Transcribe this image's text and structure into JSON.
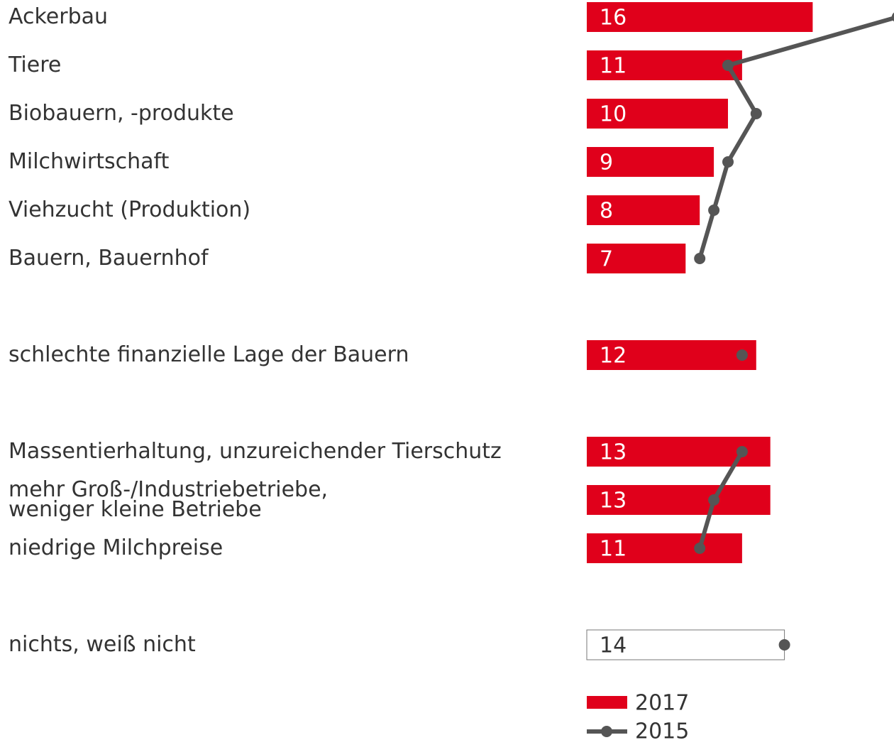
{
  "chart_data": {
    "type": "bar-line",
    "categories": [
      "Ackerbau",
      "Tiere",
      "Biobauern, -produkte",
      "Milchwirtschaft",
      "Viehzucht (Produktion)",
      "Bauern, Bauernhof",
      "schlechte finanzielle Lage der Bauern",
      "Massentierhaltung, unzureichender Tierschutz",
      "mehr Groß-/Industriebetriebe,\nweniger kleine Betriebe",
      "niedrige Milchpreise",
      "nichts, weiß nicht"
    ],
    "xlim": [
      0,
      20
    ],
    "series": [
      {
        "name": "2017",
        "color": "#e0001b",
        "values": [
          16,
          11,
          10,
          9,
          8,
          7,
          12,
          13,
          13,
          11,
          14
        ],
        "colors": [
          "#e0001b",
          "#e0001b",
          "#e0001b",
          "#e0001b",
          "#e0001b",
          "#e0001b",
          "#e0001b",
          "#e0001b",
          "#e0001b",
          "#e0001b",
          "#ffffff"
        ]
      },
      {
        "name": "2015",
        "color": "#555555",
        "values": [
          22,
          10,
          12,
          10,
          9,
          8,
          11,
          11,
          9,
          8,
          14
        ]
      }
    ]
  }
}
